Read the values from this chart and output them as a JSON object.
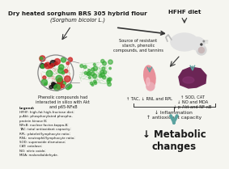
{
  "title": "Dry heated sorghum BRS 305 hybrid flour",
  "subtitle": "(Sorghum bicolor L.)",
  "hfhf_label": "HFHF diet",
  "source_text": "Source of resistant\nstarch, phenolic\ncompounds, and tannins",
  "phenolic_text": "Phenolic compounds had\ninteracted in silico with Akt\nand p65-NFκB",
  "spleen_text": "↑ TAC, ↓ RNL and RPL",
  "liver_text": "↑ SOD, CAT\n↓ NO and MDA\n↓ p-Akt and NF-κB",
  "inflammation_text": "↓ Inflammation\n↑ antioxidant capacity",
  "metabolic_text": "↓ Metabolic\nchanges",
  "legend_title": "Legend:",
  "legend_lines": [
    "HFHF: high-fat high-fructose diet;",
    "p-Akt: phosphorylated phospho-",
    "protein kinase B;",
    "NFκB: nuclear factor-kappa-B;",
    "TAC: total antioxidant capacity;",
    "RPL: platelet/lymphocyte ratio;",
    "RNL: neutrophil/lymphocyte ratio;",
    "SOD: superoxide dismutase;",
    "CAT: catalase;",
    "NO: nitric oxide;",
    "MDA: malondialdehyde."
  ],
  "bg_color": "#f5f5f0",
  "arrow_color": "#333333",
  "text_color": "#1a1a1a",
  "teal_arrow_color": "#5ba3a0",
  "network_green": "#33aa33",
  "network_red": "#cc2222",
  "spleen_color": "#e8909a",
  "liver_color": "#6b2555"
}
